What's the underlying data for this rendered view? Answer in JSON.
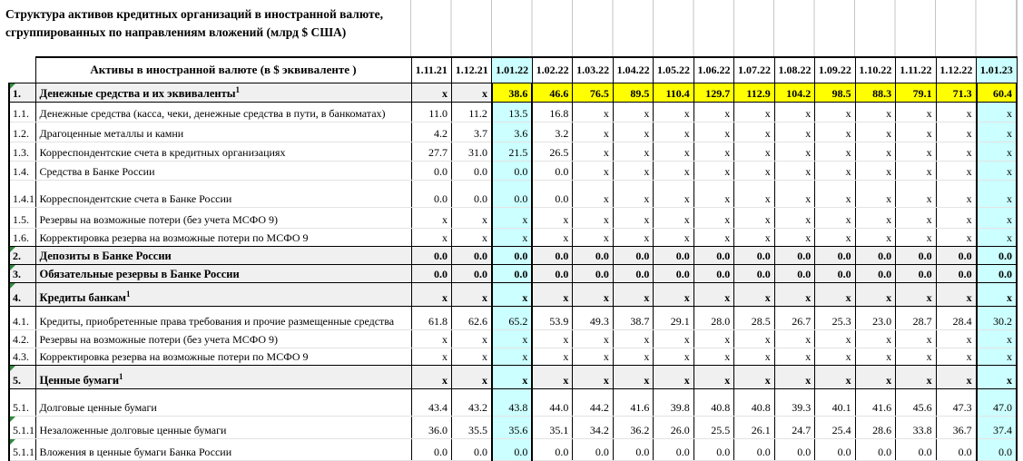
{
  "title": {
    "line1": "Структура активов кредитных организаций в иностранной валюте,",
    "line2": "сгруппированных по направлениям вложений  (млрд $ США)"
  },
  "table": {
    "header_label": "Активы в иностранной валюте (в $ эквиваленте )",
    "dates": [
      "1.11.21",
      "1.12.21",
      "1.01.22",
      "1.02.22",
      "1.03.22",
      "1.04.22",
      "1.05.22",
      "1.06.22",
      "1.07.22",
      "1.08.22",
      "1.09.22",
      "1.10.22",
      "1.11.22",
      "1.12.22",
      "1.01.23"
    ],
    "cyan_column_indexes": [
      2,
      14
    ],
    "colors": {
      "yellow": "#FFFF00",
      "cyan": "#CCFFFF",
      "section_bg": "#F0F0F0",
      "marker_green": "#2E8B3C"
    },
    "rows": [
      {
        "num": "1.",
        "label": "Денежные средства и их эквиваленты",
        "sup": "1",
        "kind": "section",
        "marker": true,
        "yellow_from": 2,
        "values": [
          "x",
          "x",
          "38.6",
          "46.6",
          "76.5",
          "89.5",
          "110.4",
          "129.7",
          "112.9",
          "104.2",
          "98.5",
          "88.3",
          "79.1",
          "71.3",
          "60.4"
        ]
      },
      {
        "num": "1.1.",
        "label": "Денежные средства (касса, чеки, денежные средства в пути, в банкоматах)",
        "kind": "sub",
        "values": [
          "11.0",
          "11.2",
          "13.5",
          "16.8",
          "x",
          "x",
          "x",
          "x",
          "x",
          "x",
          "x",
          "x",
          "x",
          "x",
          "x"
        ]
      },
      {
        "num": "1.2.",
        "label": "Драгоценные металлы и камни",
        "kind": "sub",
        "values": [
          "4.2",
          "3.7",
          "3.6",
          "3.2",
          "x",
          "x",
          "x",
          "x",
          "x",
          "x",
          "x",
          "x",
          "x",
          "x",
          "x"
        ]
      },
      {
        "num": "1.3.",
        "label": "Корреспондентские счета в кредитных организациях",
        "kind": "sub",
        "values": [
          "27.7",
          "31.0",
          "21.5",
          "26.5",
          "x",
          "x",
          "x",
          "x",
          "x",
          "x",
          "x",
          "x",
          "x",
          "x",
          "x"
        ]
      },
      {
        "num": "1.4.",
        "label": "Средства в Банке России",
        "kind": "sub",
        "values": [
          "0.0",
          "0.0",
          "0.0",
          "0.0",
          "x",
          "x",
          "x",
          "x",
          "x",
          "x",
          "x",
          "x",
          "x",
          "x",
          "x"
        ]
      },
      {
        "num": "1.4.1.",
        "label": "Корреспондентские счета в Банке России",
        "kind": "sub",
        "values": [
          "0.0",
          "0.0",
          "0.0",
          "0.0",
          "x",
          "x",
          "x",
          "x",
          "x",
          "x",
          "x",
          "x",
          "x",
          "x",
          "x"
        ]
      },
      {
        "num": "1.5.",
        "label": "Резервы на возможные потери (без учета МСФО 9)",
        "kind": "sub",
        "values": [
          "x",
          "x",
          "x",
          "x",
          "x",
          "x",
          "x",
          "x",
          "x",
          "x",
          "x",
          "x",
          "x",
          "x",
          "x"
        ]
      },
      {
        "num": "1.6.",
        "label": "Корректировка резерва на возможные потери по МСФО 9",
        "kind": "sub",
        "values": [
          "x",
          "x",
          "x",
          "x",
          "x",
          "x",
          "x",
          "x",
          "x",
          "x",
          "x",
          "x",
          "x",
          "x",
          "x"
        ]
      },
      {
        "num": "2.",
        "label": "Депозиты в Банке России",
        "kind": "section",
        "marker": true,
        "values": [
          "0.0",
          "0.0",
          "0.0",
          "0.0",
          "0.0",
          "0.0",
          "0.0",
          "0.0",
          "0.0",
          "0.0",
          "0.0",
          "0.0",
          "0.0",
          "0.0",
          "0.0"
        ]
      },
      {
        "num": "3.",
        "label": "Обязательные резервы в Банке России",
        "kind": "section",
        "marker": true,
        "values": [
          "0.0",
          "0.0",
          "0.0",
          "0.0",
          "0.0",
          "0.0",
          "0.0",
          "0.0",
          "0.0",
          "0.0",
          "0.0",
          "0.0",
          "0.0",
          "0.0",
          "0.0"
        ]
      },
      {
        "num": "4.",
        "label": "Кредиты банкам",
        "sup": "1",
        "kind": "section",
        "marker": true,
        "values": [
          "x",
          "x",
          "x",
          "x",
          "x",
          "x",
          "x",
          "x",
          "x",
          "x",
          "x",
          "x",
          "x",
          "x",
          "x"
        ]
      },
      {
        "num": "4.1.",
        "label": "Кредиты, приобретенные права требования и прочие размещенные средства",
        "kind": "sub",
        "values": [
          "61.8",
          "62.6",
          "65.2",
          "53.9",
          "49.3",
          "38.7",
          "29.1",
          "28.0",
          "28.5",
          "26.7",
          "25.3",
          "23.0",
          "28.7",
          "28.4",
          "30.2"
        ]
      },
      {
        "num": "4.2.",
        "label": "Резервы на возможные потери (без учета МСФО 9)",
        "kind": "sub",
        "values": [
          "x",
          "x",
          "x",
          "x",
          "x",
          "x",
          "x",
          "x",
          "x",
          "x",
          "x",
          "x",
          "x",
          "x",
          "x"
        ]
      },
      {
        "num": "4.3.",
        "label": "Корректировка резерва на возможные потери по МСФО 9",
        "kind": "sub",
        "values": [
          "x",
          "x",
          "x",
          "x",
          "x",
          "x",
          "x",
          "x",
          "x",
          "x",
          "x",
          "x",
          "x",
          "x",
          "x"
        ]
      },
      {
        "num": "5.",
        "label": "Ценные бумаги",
        "sup": "1",
        "kind": "section",
        "marker": true,
        "values": [
          "x",
          "x",
          "x",
          "x",
          "x",
          "x",
          "x",
          "x",
          "x",
          "x",
          "x",
          "x",
          "x",
          "x",
          "x"
        ]
      },
      {
        "num": "5.1.",
        "label": "Долговые ценные бумаги",
        "kind": "sub",
        "values": [
          "43.4",
          "43.2",
          "43.8",
          "44.0",
          "44.2",
          "41.6",
          "39.8",
          "40.8",
          "40.8",
          "39.3",
          "40.1",
          "41.6",
          "45.6",
          "47.3",
          "47.0"
        ]
      },
      {
        "num": "5.1.1",
        "label": "Незаложенные долговые ценные бумаги",
        "kind": "sub",
        "marker": true,
        "values": [
          "36.0",
          "35.5",
          "35.6",
          "35.1",
          "34.2",
          "36.2",
          "26.0",
          "25.5",
          "26.1",
          "24.7",
          "25.4",
          "28.6",
          "33.8",
          "36.7",
          "37.4"
        ]
      },
      {
        "num": "5.1.1.1.",
        "label": "Вложения в ценные бумаги Банка России",
        "kind": "sub",
        "marker": true,
        "values": [
          "0.0",
          "0.0",
          "0.0",
          "0.0",
          "0.0",
          "0.0",
          "0.0",
          "0.0",
          "0.0",
          "0.0",
          "0.0",
          "0.0",
          "0.0",
          "0.0",
          "0.0"
        ]
      }
    ]
  }
}
